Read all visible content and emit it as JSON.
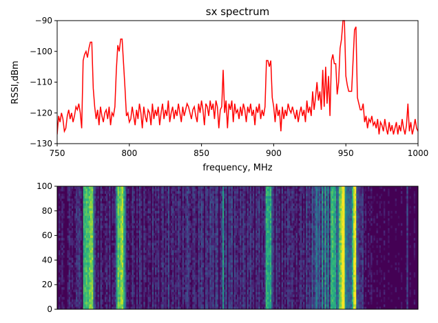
{
  "chart_data": [
    {
      "type": "line",
      "title": "sx spectrum",
      "xlabel": "frequency, MHz",
      "ylabel": "RSSI,dBm",
      "xlim": [
        750,
        1000
      ],
      "ylim": [
        -130,
        -90
      ],
      "xticks": [
        "750",
        "800",
        "850",
        "900",
        "950",
        "1000"
      ],
      "yticks": [
        "−130",
        "−120",
        "−110",
        "−100",
        "−90"
      ],
      "grid": false,
      "line_color": "#ff0000",
      "x_start": 750,
      "x_step": 1,
      "values": [
        -127,
        -121,
        -123,
        -120,
        -122,
        -126,
        -125,
        -121,
        -119,
        -122,
        -120,
        -123,
        -121,
        -118,
        -119,
        -117,
        -120,
        -125,
        -103,
        -101,
        -100,
        -102,
        -99,
        -97,
        -97,
        -112,
        -118,
        -122,
        -119,
        -124,
        -118,
        -121,
        -123,
        -120,
        -119,
        -122,
        -118,
        -124,
        -120,
        -121,
        -118,
        -106,
        -98,
        -100,
        -96,
        -96,
        -104,
        -112,
        -121,
        -120,
        -123,
        -122,
        -118,
        -121,
        -124,
        -119,
        -122,
        -117,
        -120,
        -125,
        -118,
        -121,
        -123,
        -119,
        -120,
        -124,
        -117,
        -122,
        -119,
        -121,
        -118,
        -124,
        -120,
        -117,
        -122,
        -119,
        -121,
        -116,
        -123,
        -120,
        -118,
        -122,
        -119,
        -121,
        -117,
        -120,
        -123,
        -118,
        -121,
        -119,
        -117,
        -118,
        -120,
        -122,
        -119,
        -118,
        -121,
        -123,
        -117,
        -120,
        -116,
        -119,
        -124,
        -117,
        -118,
        -121,
        -116,
        -119,
        -117,
        -122,
        -116,
        -118,
        -125,
        -119,
        -118,
        -106,
        -120,
        -116,
        -125,
        -117,
        -119,
        -116,
        -123,
        -117,
        -120,
        -119,
        -122,
        -118,
        -121,
        -117,
        -119,
        -123,
        -118,
        -120,
        -117,
        -121,
        -119,
        -124,
        -118,
        -120,
        -117,
        -122,
        -119,
        -121,
        -118,
        -103,
        -103,
        -105,
        -103,
        -115,
        -118,
        -123,
        -117,
        -121,
        -119,
        -126,
        -118,
        -122,
        -119,
        -121,
        -117,
        -119,
        -120,
        -118,
        -120,
        -122,
        -119,
        -123,
        -120,
        -118,
        -121,
        -119,
        -123,
        -116,
        -120,
        -118,
        -121,
        -113,
        -119,
        -115,
        -110,
        -116,
        -113,
        -119,
        -106,
        -118,
        -105,
        -117,
        -108,
        -121,
        -103,
        -101,
        -104,
        -104,
        -114,
        -110,
        -99,
        -96,
        -90,
        -90,
        -108,
        -111,
        -113,
        -113,
        -113,
        -103,
        -93,
        -92,
        -115,
        -117,
        -119,
        -119,
        -117,
        -123,
        -121,
        -125,
        -122,
        -123,
        -121,
        -124,
        -123,
        -125,
        -122,
        -127,
        -123,
        -124,
        -126,
        -122,
        -125,
        -127,
        -123,
        -126,
        -124,
        -127,
        -125,
        -123,
        -127,
        -124,
        -126,
        -122,
        -125,
        -127,
        -124,
        -117,
        -126,
        -123,
        -127,
        -125,
        -122,
        -125,
        -126
      ]
    },
    {
      "type": "heatmap",
      "colormap": "viridis",
      "xlim": [
        750,
        1000
      ],
      "ylim": [
        0,
        100
      ],
      "yticks": [
        "0",
        "20",
        "40",
        "60",
        "80",
        "100"
      ],
      "x_tick_labels_shown": false
    }
  ]
}
